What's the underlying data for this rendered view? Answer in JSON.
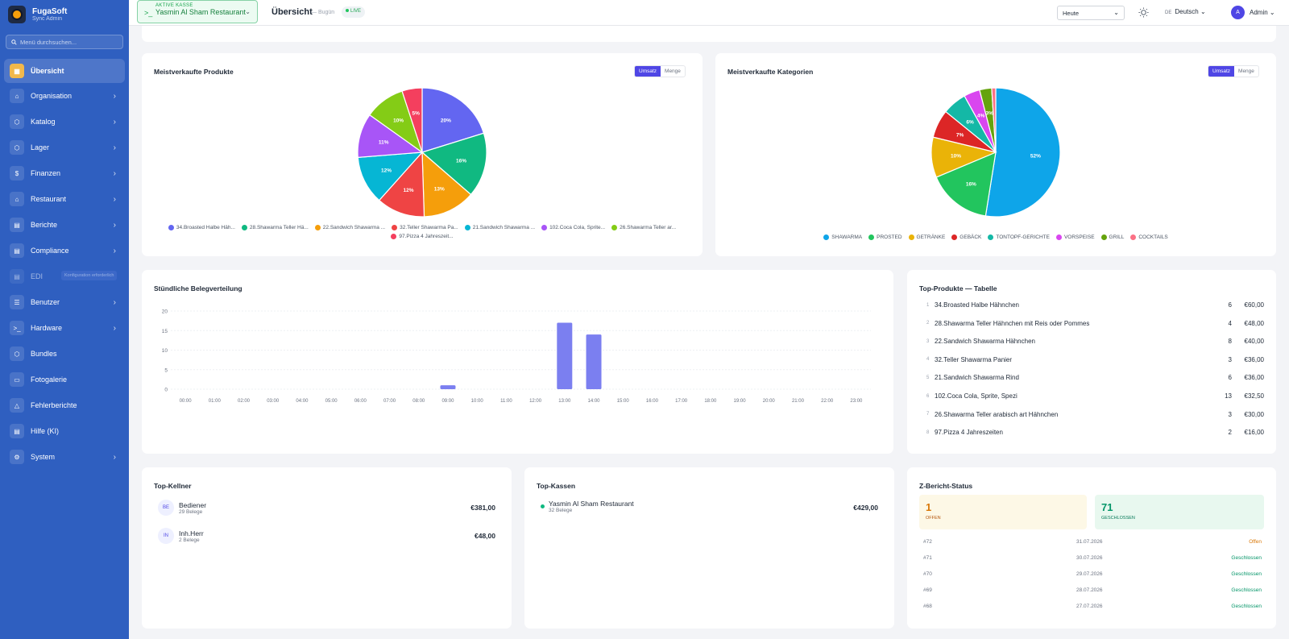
{
  "brand": {
    "name": "FugaSoft",
    "sub": "Sync Admin"
  },
  "sidebar": {
    "search_placeholder": "Menü durchsuchen...",
    "items": [
      {
        "label": "Übersicht",
        "icon": "grid-icon"
      },
      {
        "label": "Organisation",
        "icon": "home-icon"
      },
      {
        "label": "Katalog",
        "icon": "box-icon"
      },
      {
        "label": "Lager",
        "icon": "box-icon"
      },
      {
        "label": "Finanzen",
        "icon": "dollar-icon"
      },
      {
        "label": "Restaurant",
        "icon": "home-icon"
      },
      {
        "label": "Berichte",
        "icon": "document-icon"
      },
      {
        "label": "Compliance",
        "icon": "document-icon"
      },
      {
        "label": "EDI",
        "icon": "document-icon",
        "tip": "Konfiguration erforderlich"
      },
      {
        "label": "Benutzer",
        "icon": "list-icon"
      },
      {
        "label": "Hardware",
        "icon": "terminal-icon"
      },
      {
        "label": "Bundles",
        "icon": "box-icon"
      },
      {
        "label": "Fotogalerie",
        "icon": "folder-icon"
      },
      {
        "label": "Fehlerberichte",
        "icon": "warning-icon"
      },
      {
        "label": "Hilfe (KI)",
        "icon": "document-icon"
      },
      {
        "label": "System",
        "icon": "gear-icon"
      }
    ]
  },
  "topbar": {
    "kasse_label": "AKTIVE KASSE",
    "kasse_value": "Yasmin Al Sham Restaurant",
    "title": "Übersicht",
    "subtitle": "— Bugün",
    "live": "LIVE",
    "period": "Heute",
    "lang_code": "DE",
    "lang": "Deutsch",
    "user_initial": "A",
    "user": "Admin"
  },
  "toggle": {
    "on": "Umsatz",
    "off": "Menge"
  },
  "products_chart": {
    "title": "Meistverkaufte Produkte",
    "chart_data": {
      "type": "pie",
      "labels": [
        "34.Broasted Halbe Häh...",
        "28.Shawarma Teller Hä...",
        "22.Sandwich Shawarma ...",
        "32.Teller Shawarma Pa...",
        "21.Sandwich Shawarma ...",
        "102.Coca Cola, Sprite...",
        "26.Shawarma Teller ar...",
        "97.Pizza 4 Jahreszeit..."
      ],
      "values": [
        20,
        16,
        13,
        12,
        12,
        11,
        10,
        5
      ],
      "colors": [
        "#6366f1",
        "#10b981",
        "#f59e0b",
        "#ef4444",
        "#06b6d4",
        "#a855f7",
        "#84cc16",
        "#f43f5e"
      ]
    }
  },
  "categories_chart": {
    "title": "Meistverkaufte Kategorien",
    "chart_data": {
      "type": "pie",
      "labels": [
        "SHAWARMA",
        "PROSTED",
        "GETRÄNKE",
        "GEBÄCK",
        "TONTOPF-GERICHTE",
        "VORSPEISE",
        "GRILL",
        "COCKTAILS"
      ],
      "values": [
        52,
        16,
        10,
        7,
        6,
        4,
        3,
        1
      ],
      "value_labels": [
        "52%",
        "16%",
        "10%",
        "7%",
        "6%",
        "4%",
        "3%",
        ""
      ],
      "colors": [
        "#0ea5e9",
        "#22c55e",
        "#eab308",
        "#dc2626",
        "#14b8a6",
        "#d946ef",
        "#65a30d",
        "#fb7185"
      ]
    }
  },
  "hourly_chart": {
    "title": "Stündliche Belegverteilung",
    "chart_data": {
      "type": "bar",
      "categories": [
        "00:00",
        "01:00",
        "02:00",
        "03:00",
        "04:00",
        "05:00",
        "06:00",
        "07:00",
        "08:00",
        "09:00",
        "10:00",
        "11:00",
        "12:00",
        "13:00",
        "14:00",
        "15:00",
        "16:00",
        "17:00",
        "18:00",
        "19:00",
        "20:00",
        "21:00",
        "22:00",
        "23:00"
      ],
      "values": [
        0,
        0,
        0,
        0,
        0,
        0,
        0,
        0,
        0,
        1,
        0,
        0,
        0,
        17,
        14,
        0,
        0,
        0,
        0,
        0,
        0,
        0,
        0,
        0
      ],
      "ylim": [
        0,
        20
      ],
      "yticks": [
        0,
        5,
        10,
        15,
        20
      ],
      "color": "#7b7ff0"
    }
  },
  "top_products": {
    "title": "Top-Produkte — Tabelle",
    "rows": [
      {
        "idx": "1",
        "name": "34.Broasted Halbe Hähnchen",
        "qty": "6",
        "amount": "€60,00"
      },
      {
        "idx": "2",
        "name": "28.Shawarma Teller Hähnchen mit Reis oder Pommes",
        "qty": "4",
        "amount": "€48,00"
      },
      {
        "idx": "3",
        "name": "22.Sandwich Shawarma Hähnchen",
        "qty": "8",
        "amount": "€40,00"
      },
      {
        "idx": "4",
        "name": "32.Teller Shawarma Panier",
        "qty": "3",
        "amount": "€36,00"
      },
      {
        "idx": "5",
        "name": "21.Sandwich Shawarma Rind",
        "qty": "6",
        "amount": "€36,00"
      },
      {
        "idx": "6",
        "name": "102.Coca Cola, Sprite, Spezi",
        "qty": "13",
        "amount": "€32,50"
      },
      {
        "idx": "7",
        "name": "26.Shawarma Teller arabisch art Hähnchen",
        "qty": "3",
        "amount": "€30,00"
      },
      {
        "idx": "8",
        "name": "97.Pizza 4 Jahreszeiten",
        "qty": "2",
        "amount": "€16,00"
      }
    ]
  },
  "top_waiters": {
    "title": "Top-Kellner",
    "rows": [
      {
        "initials": "BE",
        "name": "Bediener",
        "sub": "29 Belege",
        "amount": "€381,00"
      },
      {
        "initials": "IN",
        "name": "Inh.Herr",
        "sub": "2 Belege",
        "amount": "€48,00"
      }
    ]
  },
  "top_registers": {
    "title": "Top-Kassen",
    "rows": [
      {
        "name": "Yasmin Al Sham Restaurant",
        "sub": "32 Belege",
        "amount": "€429,00"
      }
    ]
  },
  "z_report": {
    "title": "Z-Bericht-Status",
    "open_count": "1",
    "open_label": "OFFEN",
    "closed_count": "71",
    "closed_label": "GESCHLOSSEN",
    "rows": [
      {
        "id": "#72",
        "date": "31.07.2026",
        "status": "Offen"
      },
      {
        "id": "#71",
        "date": "30.07.2026",
        "status": "Geschlossen"
      },
      {
        "id": "#70",
        "date": "29.07.2026",
        "status": "Geschlossen"
      },
      {
        "id": "#69",
        "date": "28.07.2026",
        "status": "Geschlossen"
      },
      {
        "id": "#68",
        "date": "27.07.2026",
        "status": "Geschlossen"
      }
    ]
  }
}
